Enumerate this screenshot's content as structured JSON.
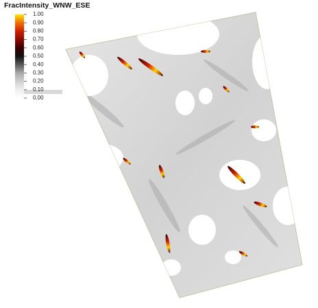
{
  "title": "FracIntensity_WNW_ESE",
  "legend": {
    "ticks": [
      {
        "value": 1,
        "label": "1.00"
      },
      {
        "value": 0.9,
        "label": "0.90"
      },
      {
        "value": 0.8,
        "label": "0.80"
      },
      {
        "value": 0.7,
        "label": "0.70"
      },
      {
        "value": 0.6,
        "label": "0.60"
      },
      {
        "value": 0.5,
        "label": "0.50"
      },
      {
        "value": 0.4,
        "label": "0.40"
      },
      {
        "value": 0.3,
        "label": "0.30"
      },
      {
        "value": 0.2,
        "label": "0.20"
      },
      {
        "value": 0.1,
        "label": "0.10"
      },
      {
        "value": 0,
        "label": "0.00"
      }
    ],
    "range": [
      0,
      1
    ]
  }
}
